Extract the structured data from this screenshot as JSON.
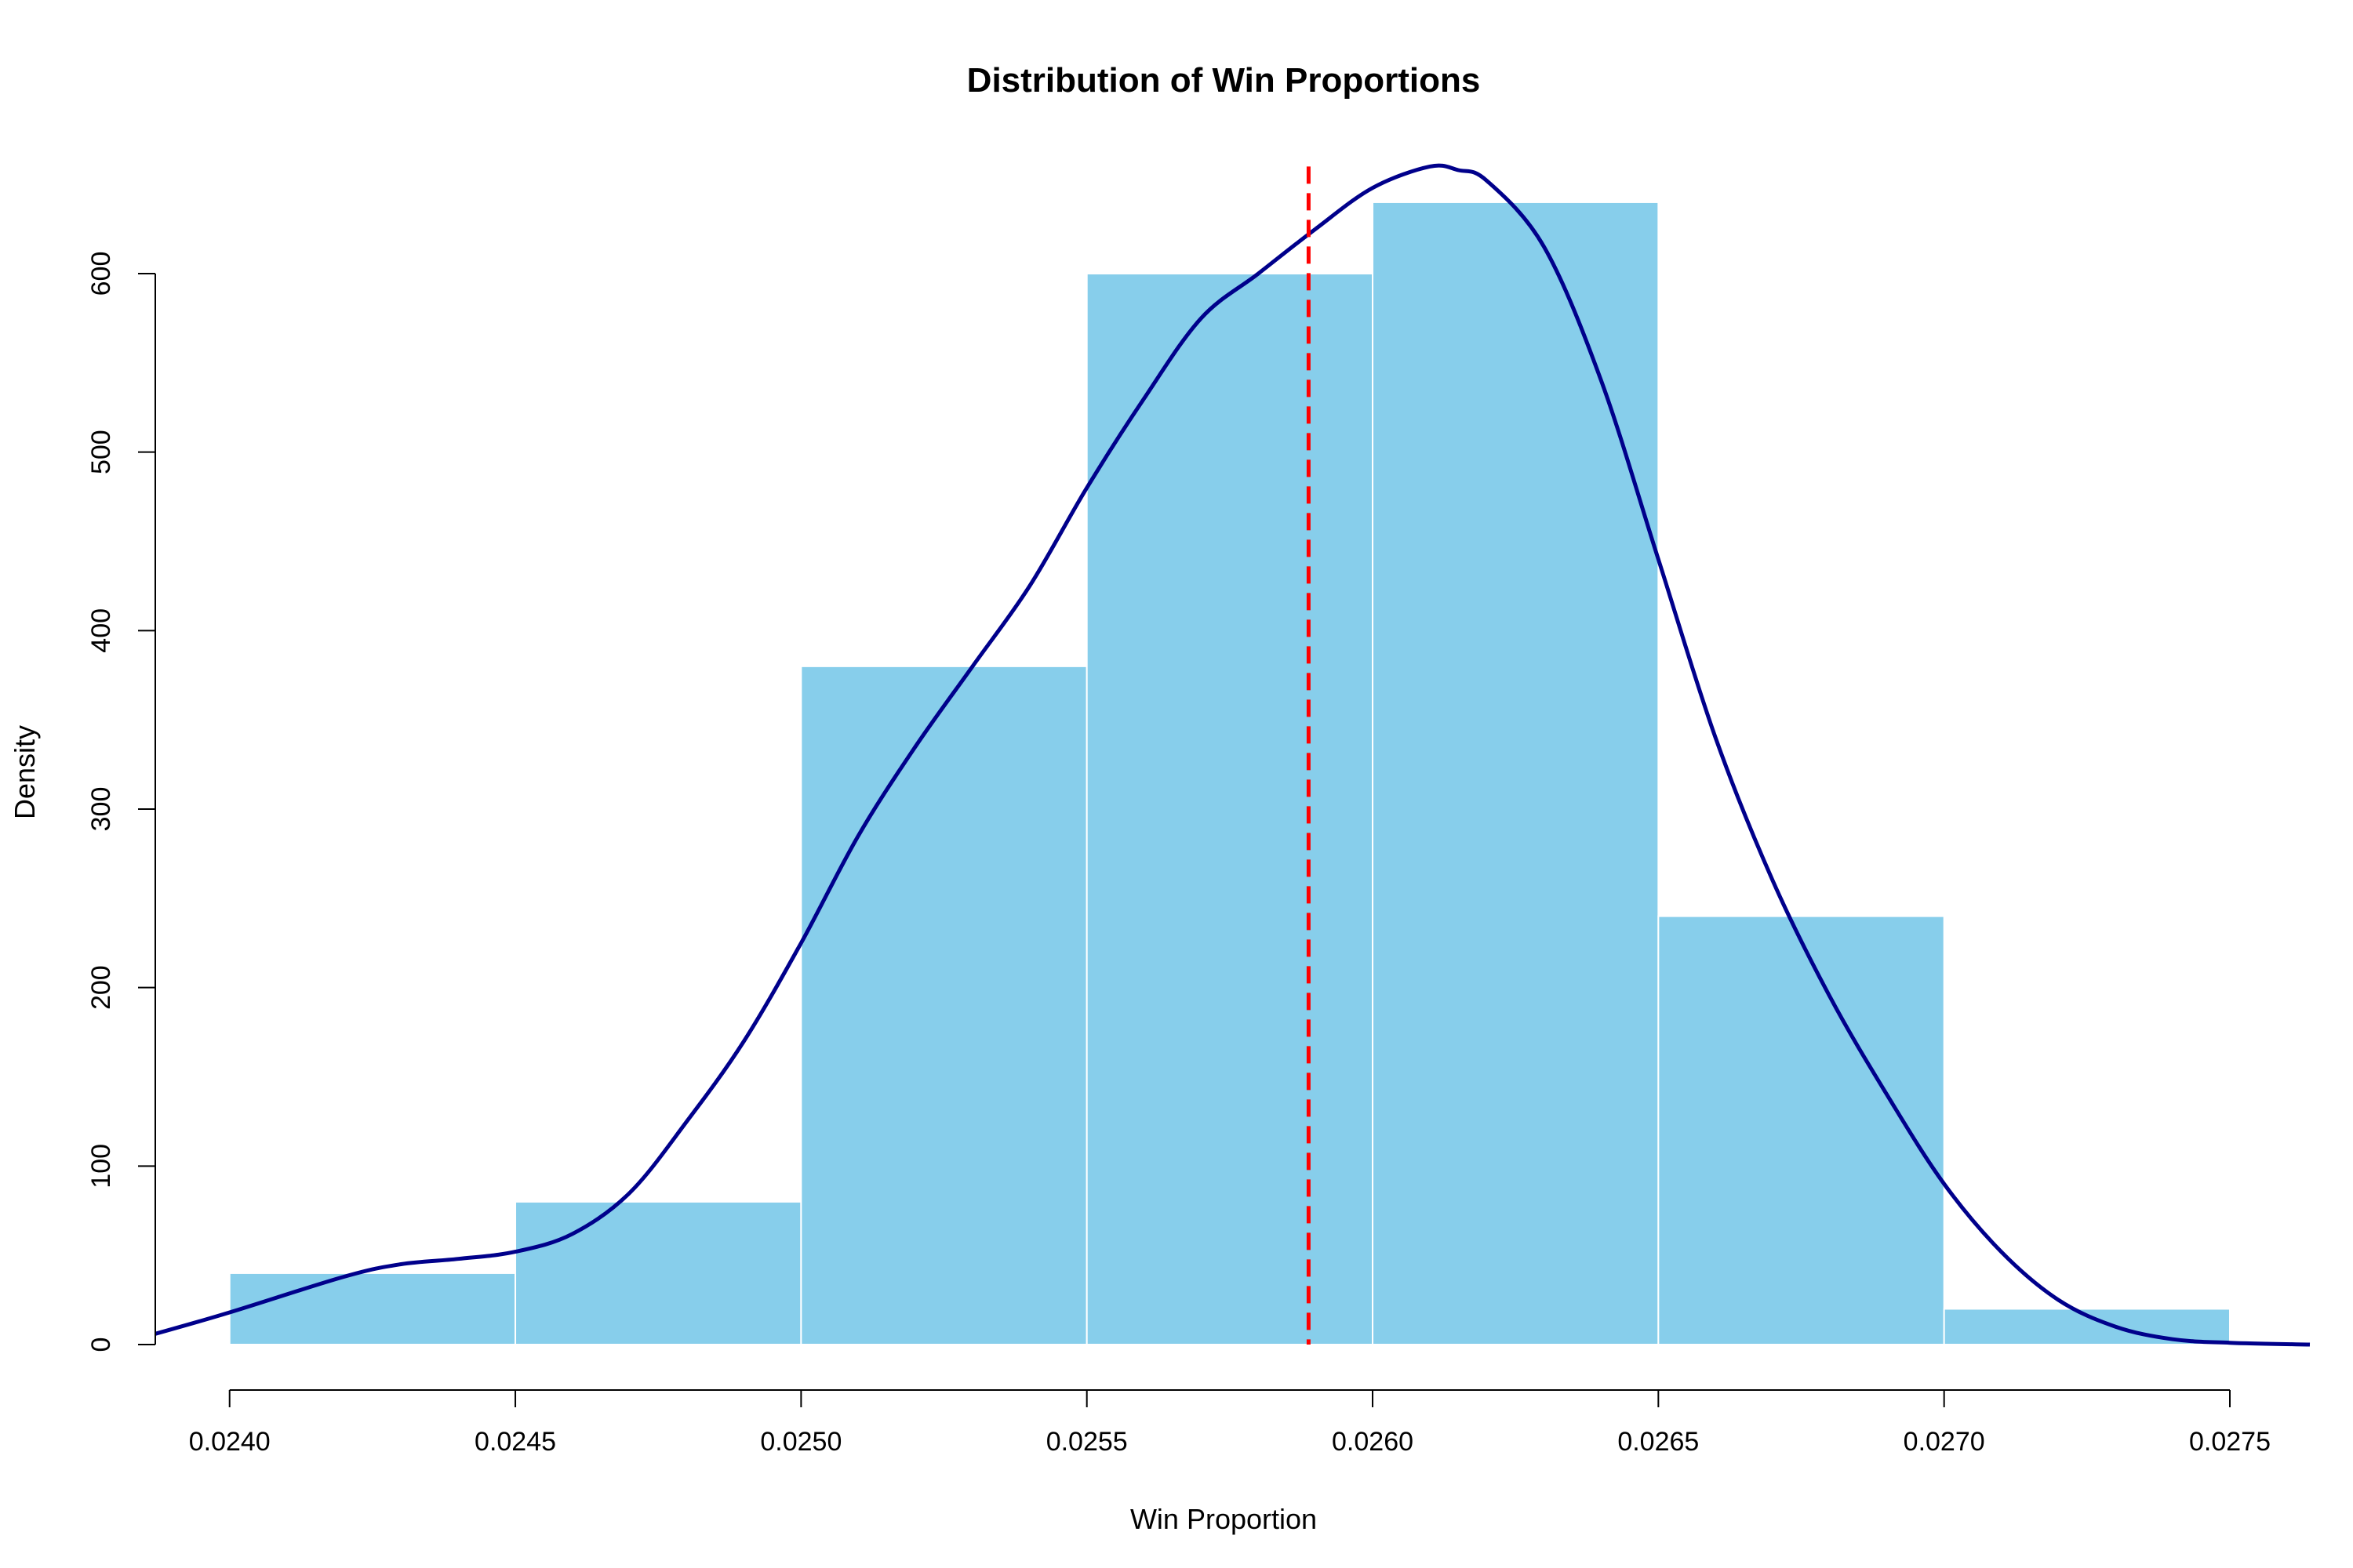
{
  "chart_data": {
    "type": "bar",
    "title": "Distribution of Win Proportions",
    "xlabel": "Win Proportion",
    "ylabel": "Density",
    "xlim": [
      0.02387,
      0.02764
    ],
    "ylim": [
      0,
      660
    ],
    "x_ticks": [
      0.024,
      0.0245,
      0.025,
      0.0255,
      0.026,
      0.0265,
      0.027,
      0.0275
    ],
    "x_tick_labels": [
      "0.0240",
      "0.0245",
      "0.0250",
      "0.0255",
      "0.0260",
      "0.0265",
      "0.0270",
      "0.0275"
    ],
    "y_ticks": [
      0,
      100,
      200,
      300,
      400,
      500,
      600
    ],
    "y_tick_labels": [
      "0",
      "100",
      "200",
      "300",
      "400",
      "500",
      "600"
    ],
    "bins": [
      {
        "start": 0.024,
        "end": 0.0245,
        "density": 40
      },
      {
        "start": 0.0245,
        "end": 0.025,
        "density": 80
      },
      {
        "start": 0.025,
        "end": 0.0255,
        "density": 380
      },
      {
        "start": 0.0255,
        "end": 0.026,
        "density": 600
      },
      {
        "start": 0.026,
        "end": 0.0265,
        "density": 640
      },
      {
        "start": 0.0265,
        "end": 0.027,
        "density": 240
      },
      {
        "start": 0.027,
        "end": 0.0275,
        "density": 20
      }
    ],
    "density_curve": [
      [
        0.02387,
        6
      ],
      [
        0.024,
        18
      ],
      [
        0.0242,
        38
      ],
      [
        0.0243,
        45
      ],
      [
        0.0244,
        48
      ],
      [
        0.0245,
        52
      ],
      [
        0.0246,
        62
      ],
      [
        0.0247,
        85
      ],
      [
        0.0248,
        125
      ],
      [
        0.0249,
        170
      ],
      [
        0.025,
        225
      ],
      [
        0.0251,
        285
      ],
      [
        0.0252,
        335
      ],
      [
        0.0253,
        380
      ],
      [
        0.0254,
        425
      ],
      [
        0.0255,
        480
      ],
      [
        0.0256,
        530
      ],
      [
        0.0257,
        575
      ],
      [
        0.0258,
        600
      ],
      [
        0.0259,
        625
      ],
      [
        0.026,
        648
      ],
      [
        0.0261,
        660
      ],
      [
        0.02615,
        658
      ],
      [
        0.0262,
        652
      ],
      [
        0.0263,
        615
      ],
      [
        0.0264,
        540
      ],
      [
        0.0265,
        440
      ],
      [
        0.0266,
        340
      ],
      [
        0.0267,
        260
      ],
      [
        0.0268,
        195
      ],
      [
        0.0269,
        140
      ],
      [
        0.027,
        90
      ],
      [
        0.0271,
        52
      ],
      [
        0.0272,
        25
      ],
      [
        0.0273,
        10
      ],
      [
        0.0274,
        3
      ],
      [
        0.0275,
        1
      ],
      [
        0.02764,
        0
      ]
    ],
    "mean_line_x": 0.025888,
    "colors": {
      "bar_fill": "#87CEEB",
      "bar_border": "#FFFFFF",
      "density": "#00008B",
      "mean_line": "#FF0000"
    }
  }
}
